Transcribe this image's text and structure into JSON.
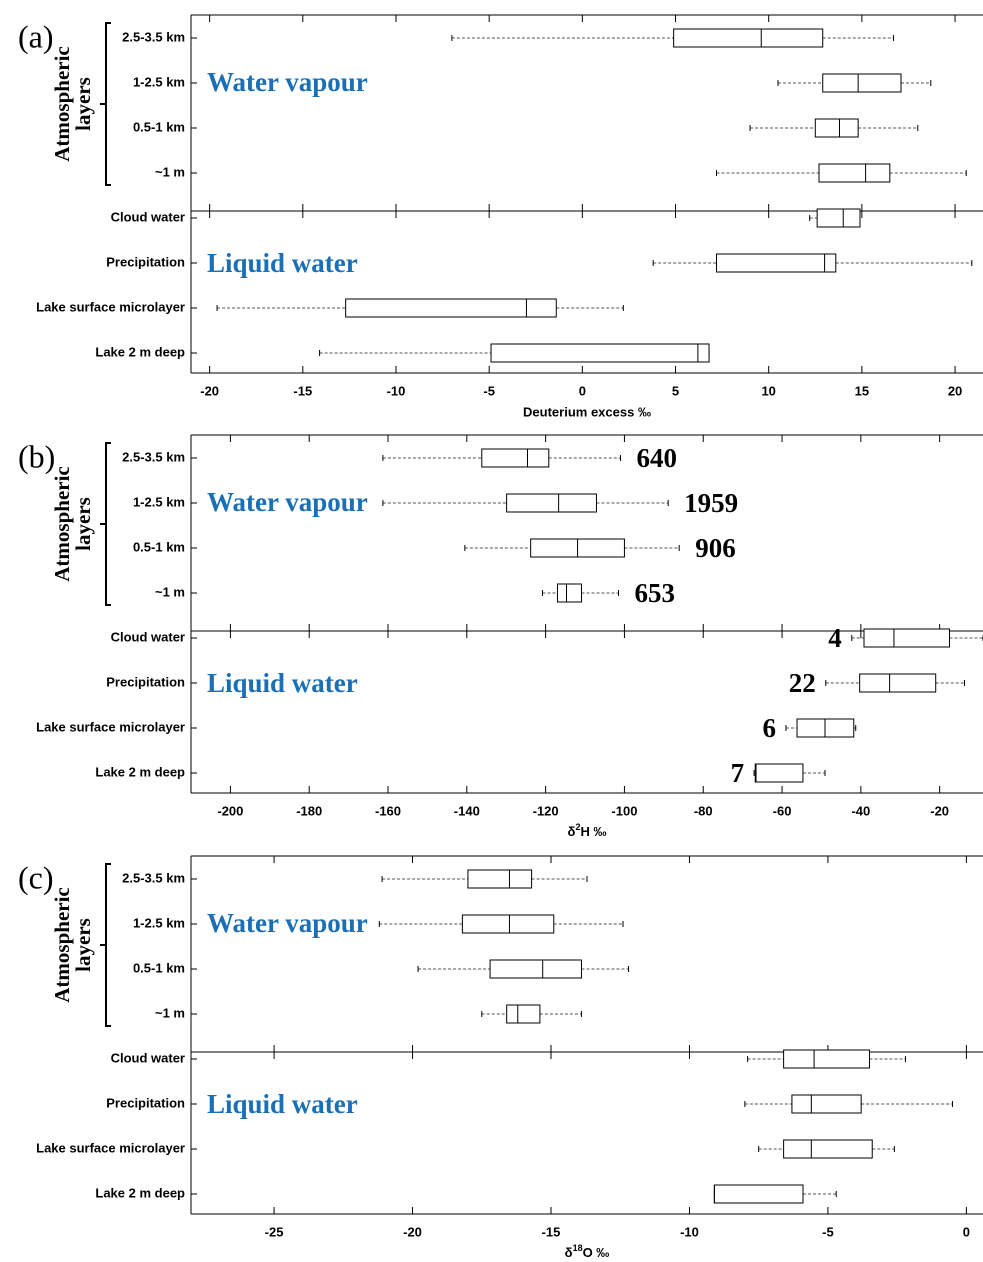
{
  "chart_data": [
    {
      "type": "box",
      "panel_label": "(a)",
      "group_label": [
        "Atmospheric",
        "layers"
      ],
      "annotations": [
        "Water vapour",
        "Liquid water"
      ],
      "categories": [
        "2.5-3.5 km",
        "1-2.5 km",
        "0.5-1 km",
        "~1 m",
        "Cloud water",
        "Precipitation",
        "Lake surface microlayer",
        "Lake 2 m deep"
      ],
      "low": [
        -7.0,
        10.5,
        9.0,
        7.2,
        12.2,
        3.8,
        -19.6,
        -14.1
      ],
      "q1": [
        4.9,
        12.9,
        12.5,
        12.7,
        12.6,
        7.2,
        -12.7,
        -4.9
      ],
      "median": [
        9.6,
        14.8,
        13.8,
        15.2,
        14.0,
        13.0,
        -3.0,
        6.2
      ],
      "q3": [
        12.9,
        17.1,
        14.8,
        16.5,
        14.9,
        13.6,
        -1.4,
        6.8
      ],
      "high": [
        16.7,
        18.7,
        18.0,
        20.6,
        14.9,
        20.9,
        2.2,
        6.8
      ],
      "xlabel": "Deuterium excess ‰",
      "xlim": [
        -21,
        21.5
      ],
      "xticks": [
        -20,
        -15,
        -10,
        -5,
        0,
        5,
        10,
        15,
        20
      ]
    },
    {
      "type": "box",
      "panel_label": "(b)",
      "group_label": [
        "Atmospheric",
        "layers"
      ],
      "annotations": [
        "Water vapour",
        "Liquid water"
      ],
      "categories": [
        "2.5-3.5 km",
        "1-2.5 km",
        "0.5-1 km",
        "~1 m",
        "Cloud water",
        "Precipitation",
        "Lake surface microlayer",
        "Lake 2 m deep"
      ],
      "low": [
        -161.3,
        -161.3,
        -140.5,
        -120.8,
        -42.3,
        -48.9,
        -59.0,
        -67.1
      ],
      "q1": [
        -136.2,
        -129.9,
        -123.8,
        -117.0,
        -39.2,
        -40.3,
        -56.2,
        -66.8
      ],
      "median": [
        -124.6,
        -116.7,
        -111.9,
        -114.7,
        -31.6,
        -32.7,
        -49.1,
        -66.6
      ],
      "q3": [
        -119.2,
        -107.1,
        -100.0,
        -110.9,
        -17.5,
        -21.0,
        -41.8,
        -54.7
      ],
      "high": [
        -101.0,
        -88.9,
        -86.1,
        -101.5,
        -9.0,
        -13.7,
        -41.3,
        -49.1
      ],
      "counts": [
        640,
        1959,
        906,
        653,
        4,
        22,
        6,
        7
      ],
      "xlabel": [
        "δ",
        "2",
        "H ‰"
      ],
      "xlim": [
        -210,
        -9
      ],
      "xticks": [
        -200,
        -180,
        -160,
        -140,
        -120,
        -100,
        -80,
        -60,
        -40,
        -20
      ]
    },
    {
      "type": "box",
      "panel_label": "(c)",
      "group_label": [
        "Atmospheric",
        "layers"
      ],
      "annotations": [
        "Water vapour",
        "Liquid water"
      ],
      "categories": [
        "2.5-3.5 km",
        "1-2.5 km",
        "0.5-1 km",
        "~1 m",
        "Cloud water",
        "Precipitation",
        "Lake surface microlayer",
        "Lake 2 m deep"
      ],
      "low": [
        -21.1,
        -21.2,
        -19.8,
        -17.5,
        -7.9,
        -8.0,
        -7.5,
        -9.1
      ],
      "q1": [
        -18.0,
        -18.2,
        -17.2,
        -16.6,
        -6.6,
        -6.3,
        -6.6,
        -9.1
      ],
      "median": [
        -16.5,
        -16.5,
        -15.3,
        -16.2,
        -5.5,
        -5.6,
        -5.6,
        -9.1
      ],
      "q3": [
        -15.7,
        -14.9,
        -13.9,
        -15.4,
        -3.5,
        -3.8,
        -3.4,
        -5.9
      ],
      "high": [
        -13.7,
        -12.4,
        -12.2,
        -13.9,
        -2.2,
        -0.5,
        -2.6,
        -4.7
      ],
      "xlabel": [
        "δ",
        "18",
        "O ‰"
      ],
      "xlim": [
        -28,
        0.6
      ],
      "xticks": [
        -25,
        -20,
        -15,
        -10,
        -5,
        0
      ]
    }
  ]
}
